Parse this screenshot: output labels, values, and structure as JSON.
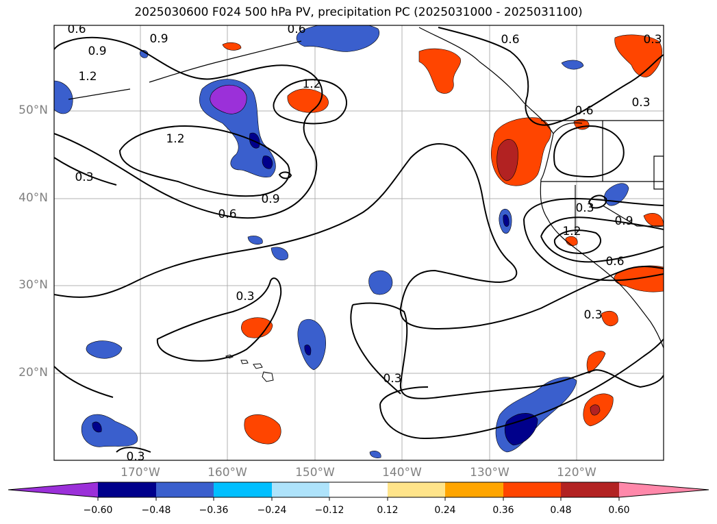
{
  "title": "2025030600 F024 500 hPa PV, precipitation PC (2025031000 - 2025031100)",
  "map": {
    "lat_labels": [
      "50°N",
      "40°N",
      "30°N",
      "20°N"
    ],
    "lon_labels": [
      "170°W",
      "160°W",
      "150°W",
      "140°W",
      "130°W",
      "120°W"
    ],
    "contour_labels": [
      {
        "text": "0.6"
      },
      {
        "text": "0.9"
      },
      {
        "text": "0.9"
      },
      {
        "text": "1.2"
      },
      {
        "text": "1.2"
      },
      {
        "text": "1.2"
      },
      {
        "text": "0.3"
      },
      {
        "text": "0.6"
      },
      {
        "text": "0.9"
      },
      {
        "text": "0.3"
      },
      {
        "text": "0.3"
      },
      {
        "text": "0.6"
      },
      {
        "text": "0.6"
      },
      {
        "text": "0.6"
      },
      {
        "text": "0.3"
      },
      {
        "text": "1.2"
      },
      {
        "text": "0.9"
      },
      {
        "text": "0.6"
      },
      {
        "text": "0.3"
      },
      {
        "text": "0.3"
      },
      {
        "text": "0.3"
      },
      {
        "text": "0.3"
      }
    ]
  },
  "colorbar": {
    "colors": [
      "#9b30d9",
      "#00008b",
      "#3a5fcd",
      "#00bfff",
      "#aee3fb",
      "#ffffff",
      "#ffe48a",
      "#ffa500",
      "#ff4500",
      "#b22222",
      "#ff88aa"
    ],
    "tick_labels": [
      "−0.60",
      "−0.48",
      "−0.36",
      "−0.24",
      "−0.12",
      "0.12",
      "0.24",
      "0.36",
      "0.48",
      "0.60"
    ]
  }
}
